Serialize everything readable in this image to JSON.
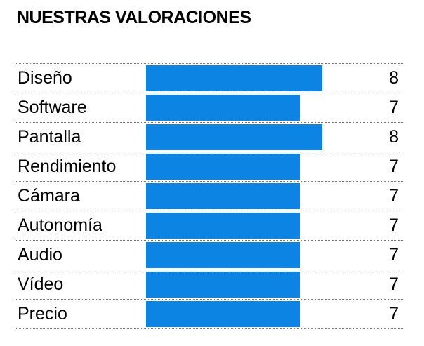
{
  "title": "NUESTRAS VALORACIONES",
  "scale_max": 10,
  "bar_color": "#0c84e4",
  "ratings": [
    {
      "label": "Diseño",
      "value": 8
    },
    {
      "label": "Software",
      "value": 7
    },
    {
      "label": "Pantalla",
      "value": 8
    },
    {
      "label": "Rendimiento",
      "value": 7
    },
    {
      "label": "Cámara",
      "value": 7
    },
    {
      "label": "Autonomía",
      "value": 7
    },
    {
      "label": "Audio",
      "value": 7
    },
    {
      "label": "Vídeo",
      "value": 7
    },
    {
      "label": "Precio",
      "value": 7
    }
  ]
}
